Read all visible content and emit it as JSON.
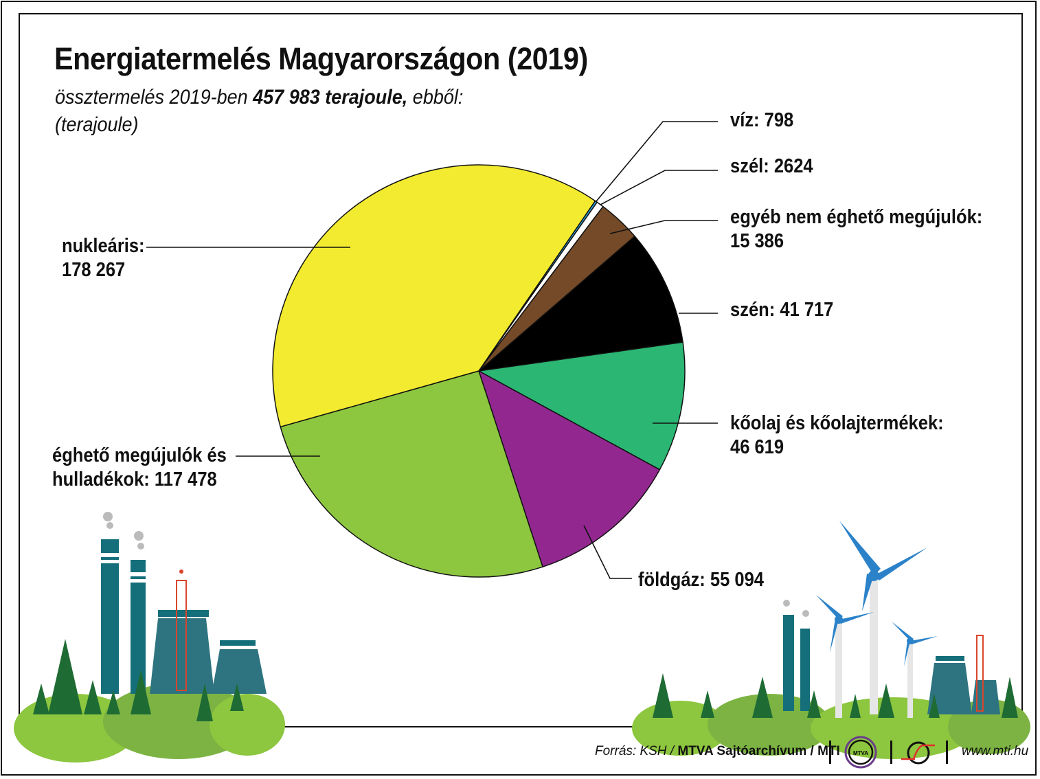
{
  "title": "Energiatermelés Magyarországon (2019)",
  "subtitle": {
    "prefix": "össztermelés 2019-ben ",
    "total": "457 983 terajoule,",
    "suffix": " ebből:",
    "unit": "(terajoule)"
  },
  "chart_data": {
    "type": "pie",
    "title": "Energiatermelés Magyarországon (2019)",
    "unit": "terajoule",
    "total": 457983,
    "slices": [
      {
        "name": "víz",
        "value": 798,
        "label": "víz: 798",
        "color": "#29a8e0"
      },
      {
        "name": "szél",
        "value": 2624,
        "label": "szél: 2624",
        "color": "#ffffff"
      },
      {
        "name": "egyéb nem éghető megújulók",
        "value": 15386,
        "label": "egyéb nem éghető megújulók:",
        "label2": "15 386",
        "color": "#744a28"
      },
      {
        "name": "szén",
        "value": 41717,
        "label": "szén: 41 717",
        "color": "#000000"
      },
      {
        "name": "kőolaj és kőolajtermékek",
        "value": 46619,
        "label": "kőolaj és kőolajtermékek:",
        "label2": "46 619",
        "color": "#2bb673"
      },
      {
        "name": "földgáz",
        "value": 55094,
        "label": "földgáz: 55 094",
        "color": "#92278f"
      },
      {
        "name": "éghető megújulók és hulladékok",
        "value": 117478,
        "label": "éghető megújulók és",
        "label2": "hulladékok: 117 478",
        "color": "#8dc63f"
      },
      {
        "name": "nukleáris",
        "value": 178267,
        "label": "nukleáris:",
        "label2": "178 267",
        "color": "#f2eb2f"
      }
    ]
  },
  "footer": {
    "source_prefix": "Forrás: KSH / ",
    "source_bold": "MTVA Sajtóarchívum / MTI",
    "mtva_logo": "MTVA",
    "url": "www.mti.hu"
  }
}
